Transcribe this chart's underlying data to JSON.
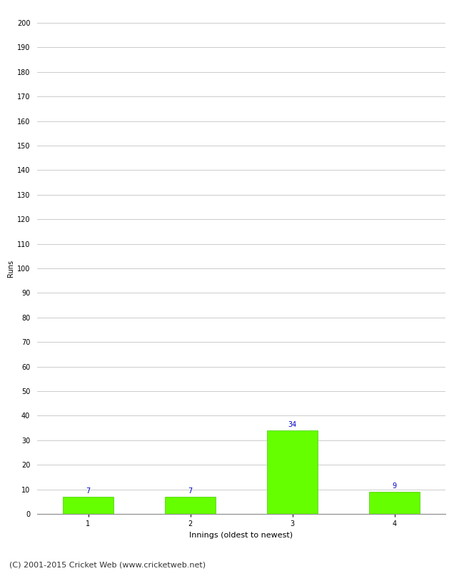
{
  "categories": [
    1,
    2,
    3,
    4
  ],
  "values": [
    7,
    7,
    34,
    9
  ],
  "bar_color": "#66ff00",
  "bar_edge_color": "#44cc00",
  "value_label_color": "#0000cc",
  "value_label_fontsize": 7,
  "xlabel": "Innings (oldest to newest)",
  "ylabel": "Runs",
  "ylim": [
    0,
    200
  ],
  "yticks": [
    0,
    10,
    20,
    30,
    40,
    50,
    60,
    70,
    80,
    90,
    100,
    110,
    120,
    130,
    140,
    150,
    160,
    170,
    180,
    190,
    200
  ],
  "xticks": [
    1,
    2,
    3,
    4
  ],
  "grid_color": "#cccccc",
  "background_color": "#ffffff",
  "footer_text": "(C) 2001-2015 Cricket Web (www.cricketweb.net)",
  "footer_fontsize": 8,
  "xlabel_fontsize": 8,
  "ylabel_fontsize": 7,
  "tick_fontsize": 7,
  "bar_width": 0.5
}
